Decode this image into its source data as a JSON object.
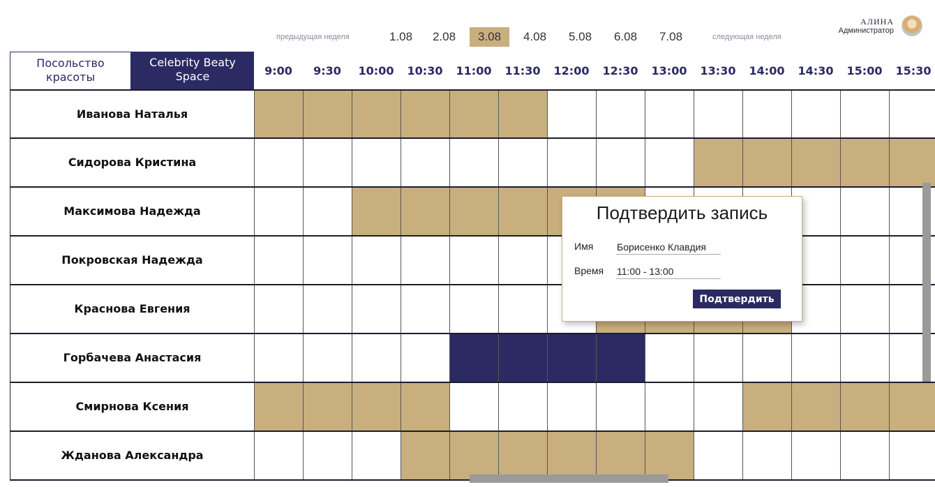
{
  "week_nav": {
    "prev_label": "предыдущая неделя",
    "next_label": "следующая неделя",
    "days": [
      "1.08",
      "2.08",
      "3.08",
      "4.08",
      "5.08",
      "6.08",
      "7.08"
    ],
    "active_day": "3.08"
  },
  "user": {
    "name": "АЛИНА",
    "role": "Администратор"
  },
  "locations": [
    "Посольство красоты",
    "Celebrity Beaty Space"
  ],
  "active_location": "Celebrity Beaty Space",
  "times": [
    "9:00",
    "9:30",
    "10:00",
    "10:30",
    "11:00",
    "11:30",
    "12:00",
    "12:30",
    "13:00",
    "13:30",
    "14:00",
    "14:30",
    "15:00",
    "15:30"
  ],
  "staff": [
    {
      "name": "Иванова Наталья",
      "booked": [
        1,
        1,
        1,
        1,
        1,
        1,
        0,
        0,
        0,
        0,
        0,
        0,
        0,
        0
      ]
    },
    {
      "name": "Сидорова Кристина",
      "booked": [
        0,
        0,
        0,
        0,
        0,
        0,
        0,
        0,
        0,
        1,
        1,
        1,
        1,
        1
      ]
    },
    {
      "name": "Максимова Надежда",
      "booked": [
        0,
        0,
        1,
        1,
        1,
        1,
        1,
        1,
        0,
        0,
        0,
        0,
        0,
        0
      ]
    },
    {
      "name": "Покровская Надежда",
      "booked": [
        0,
        0,
        0,
        0,
        0,
        0,
        0,
        0,
        0,
        0,
        0,
        0,
        0,
        0
      ]
    },
    {
      "name": "Краснова Евгения",
      "booked": [
        0,
        0,
        0,
        0,
        0,
        0,
        0,
        1,
        1,
        1,
        1,
        0,
        0,
        0
      ]
    },
    {
      "name": "Горбачева Анастасия",
      "booked": [
        0,
        0,
        0,
        0,
        2,
        2,
        2,
        2,
        0,
        0,
        0,
        0,
        0,
        0
      ]
    },
    {
      "name": "Смирнова Ксения",
      "booked": [
        1,
        1,
        1,
        1,
        0,
        0,
        0,
        0,
        0,
        0,
        1,
        1,
        1,
        1
      ]
    },
    {
      "name": "Жданова Александра",
      "booked": [
        0,
        0,
        0,
        1,
        1,
        1,
        1,
        1,
        1,
        0,
        0,
        0,
        0,
        0
      ]
    }
  ],
  "dialog": {
    "title": "Подтвердить запись",
    "name_label": "Имя",
    "name_value": "Борисенко Клавдия",
    "time_label": "Время",
    "time_value": "11:00 - 13:00",
    "confirm_label": "Подтвердить"
  },
  "colors": {
    "booked": "#c9ae7e",
    "selected": "#2b2a63",
    "brand": "#2b2a63"
  }
}
